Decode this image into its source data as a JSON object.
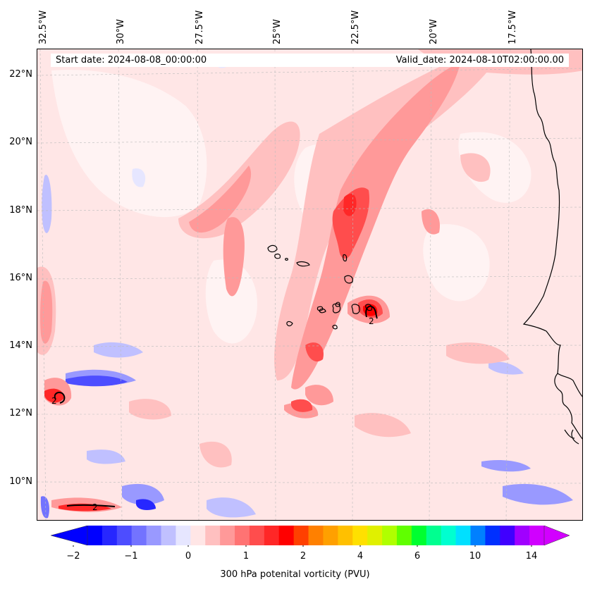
{
  "header": {
    "start_date": "Start date: 2024-08-08_00:00:00",
    "valid_date": "Valid_date: 2024-08-10T02:00:00.00"
  },
  "longitude_labels": [
    "32.5°W",
    "30°W",
    "27.5°W",
    "25°W",
    "22.5°W",
    "20°W",
    "17.5°W"
  ],
  "latitude_labels": [
    "22°N",
    "20°N",
    "18°N",
    "16°N",
    "14°N",
    "12°N",
    "10°N"
  ],
  "map": {
    "variable": "300 hPa potenital vorticity",
    "contour_labels": [
      "2",
      "2",
      "2"
    ],
    "islands": "Cape Verde",
    "coastline": "West Africa"
  },
  "colorbar": {
    "label": "300 hPa potenital vorticity (PVU)",
    "tick_labels": [
      "−2",
      "−1",
      "0",
      "1",
      "2",
      "4",
      "6",
      "10",
      "14"
    ],
    "colors": [
      "#0000ff",
      "#2727ff",
      "#4d4dff",
      "#7373ff",
      "#9999ff",
      "#c0c0ff",
      "#e6e6ff",
      "#ffe6e6",
      "#ffc0c0",
      "#ff9999",
      "#ff7373",
      "#ff4d4d",
      "#ff2727",
      "#ff0000",
      "#ff4000",
      "#ff8000",
      "#ffa000",
      "#ffc000",
      "#ffe000",
      "#e0f000",
      "#b0ff00",
      "#60ff00",
      "#00ff30",
      "#00ff90",
      "#00ffd0",
      "#00e0ff",
      "#0080ff",
      "#0030ff",
      "#4000ff",
      "#a000ff",
      "#d000ff"
    ],
    "under_color": "#0000ff",
    "over_color": "#d200ff"
  }
}
